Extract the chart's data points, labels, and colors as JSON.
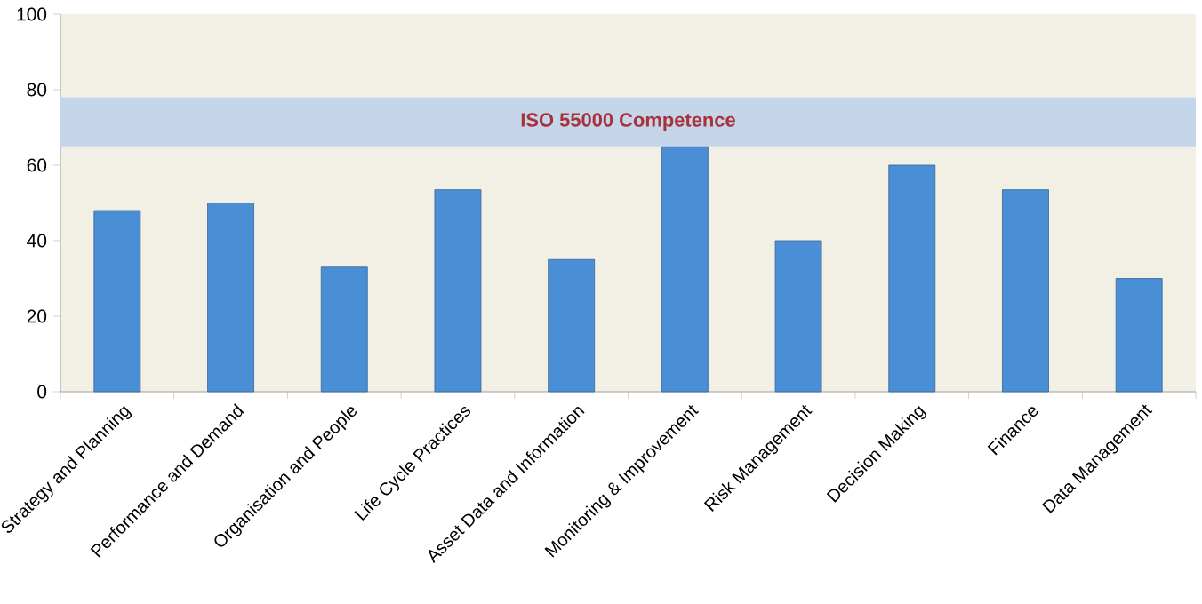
{
  "chart_data": {
    "type": "bar",
    "categories": [
      "Strategy and Planning",
      "Performance and Demand",
      "Organisation and People",
      "Life Cycle Practices",
      "Asset Data and Information",
      "Monitoring & Improvement",
      "Risk Management",
      "Decision Making",
      "Finance",
      "Data Management"
    ],
    "values": [
      48,
      50,
      33,
      53.5,
      35,
      65,
      40,
      60,
      53.5,
      30
    ],
    "color": "#4a8fd6",
    "ylim": [
      0,
      100
    ],
    "yticks": [
      0,
      20,
      40,
      60,
      80,
      100
    ],
    "bands": [
      {
        "axis": "y",
        "from": 65,
        "to": 78,
        "label": "ISO 55000 Competence",
        "color": "#c5d5ea"
      }
    ]
  }
}
